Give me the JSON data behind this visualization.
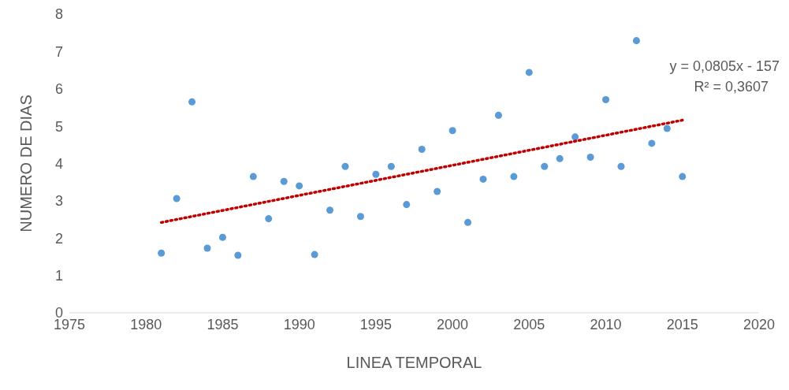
{
  "chart_data": {
    "type": "scatter",
    "xlabel": "LINEA TEMPORAL",
    "ylabel": "NUMERO DE DIAS",
    "xlim": [
      1975,
      2020
    ],
    "xticks": [
      1975,
      1980,
      1985,
      1990,
      1995,
      2000,
      2005,
      2010,
      2015,
      2020
    ],
    "ylim": [
      0,
      8
    ],
    "yticks": [
      0,
      1,
      2,
      3,
      4,
      5,
      6,
      7,
      8
    ],
    "grid": false,
    "marker": "circle",
    "annotations": [
      "y = 0,0805x - 157",
      "R² = 0,3607"
    ],
    "series": [
      {
        "color": "#5b9bd5",
        "x": [
          1981,
          1982,
          1983,
          1984,
          1985,
          1986,
          1987,
          1988,
          1989,
          1990,
          1991,
          1992,
          1993,
          1994,
          1995,
          1996,
          1997,
          1998,
          1999,
          2000,
          2001,
          2002,
          2003,
          2004,
          2005,
          2006,
          2007,
          2008,
          2009,
          2010,
          2011,
          2012,
          2013,
          2014,
          2015
        ],
        "values": [
          1.6,
          3.06,
          5.65,
          1.73,
          2.02,
          1.54,
          3.65,
          2.52,
          3.52,
          3.4,
          1.56,
          2.75,
          3.92,
          2.58,
          3.71,
          3.92,
          2.9,
          4.38,
          3.25,
          4.88,
          2.42,
          3.58,
          5.29,
          3.65,
          6.44,
          3.92,
          4.13,
          4.71,
          4.17,
          5.71,
          3.92,
          7.29,
          4.54,
          4.94,
          3.65
        ]
      },
      {
        "type": "line",
        "color": "#c00000",
        "marker": "none",
        "line_style": "dotted",
        "x": [
          1981,
          2015
        ],
        "values": [
          2.42,
          5.16
        ]
      }
    ]
  }
}
